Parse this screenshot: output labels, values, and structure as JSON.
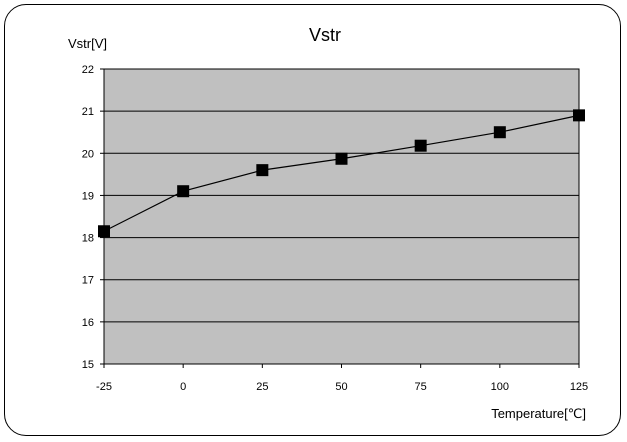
{
  "chart_data": {
    "type": "line",
    "title": "Vstr",
    "ylabel": "Vstr[V]",
    "xlabel": "Temperature[℃]",
    "x": [
      -25,
      0,
      25,
      50,
      75,
      100,
      125
    ],
    "x_tick_labels": [
      "-25",
      "0",
      "25",
      "50",
      "75",
      "100",
      "125"
    ],
    "y_tick_labels": [
      "15",
      "16",
      "17",
      "18",
      "19",
      "20",
      "21",
      "22"
    ],
    "series": [
      {
        "values": [
          18.15,
          19.1,
          19.6,
          19.87,
          20.18,
          20.5,
          20.9
        ]
      }
    ],
    "xlim": [
      -25,
      125
    ],
    "ylim": [
      15,
      22
    ],
    "y_ticks": [
      15,
      16,
      17,
      18,
      19,
      20,
      21,
      22
    ],
    "grid": true,
    "colors": {
      "plot_background": "#c0c0c0",
      "line": "#000000",
      "marker": "#000000",
      "grid": "#000000"
    },
    "marker": "square"
  }
}
